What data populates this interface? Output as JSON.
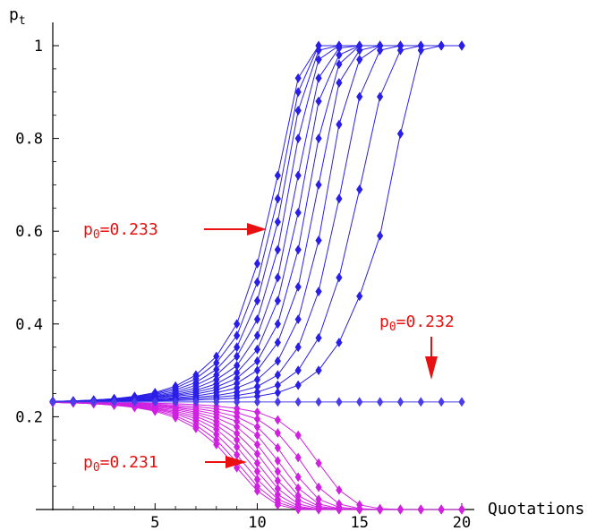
{
  "chart_data": {
    "type": "line",
    "title": "",
    "xlabel": "Quotations",
    "ylabel": "p",
    "ylabel_sub": "t",
    "xlim": [
      0,
      20
    ],
    "ylim": [
      0,
      1
    ],
    "x_ticks": [
      5,
      10,
      15,
      20
    ],
    "y_ticks": [
      "0.2",
      "0.4",
      "0.6",
      "0.8",
      "1"
    ],
    "grid": false,
    "x": [
      0,
      1,
      2,
      3,
      4,
      5,
      6,
      7,
      8,
      9,
      10,
      11,
      12,
      13,
      14,
      15,
      16,
      17,
      18,
      19,
      20
    ],
    "series_upper_color": "#2a1fe6",
    "series_lower_color": "#d020e0",
    "series_flat_color": "#4a3ce8",
    "annotation_color": "#e81010",
    "upper_series": [
      [
        0.233,
        0.234,
        0.236,
        0.239,
        0.244,
        0.252,
        0.266,
        0.29,
        0.33,
        0.4,
        0.53,
        0.72,
        0.93,
        1,
        1,
        1,
        1,
        1,
        1,
        1,
        1
      ],
      [
        0.233,
        0.234,
        0.236,
        0.239,
        0.243,
        0.25,
        0.262,
        0.282,
        0.316,
        0.375,
        0.49,
        0.67,
        0.9,
        1,
        1,
        1,
        1,
        1,
        1,
        1,
        1
      ],
      [
        0.233,
        0.234,
        0.235,
        0.238,
        0.242,
        0.248,
        0.258,
        0.274,
        0.302,
        0.35,
        0.45,
        0.62,
        0.86,
        0.99,
        1,
        1,
        1,
        1,
        1,
        1,
        1
      ],
      [
        0.233,
        0.234,
        0.235,
        0.237,
        0.241,
        0.246,
        0.254,
        0.268,
        0.29,
        0.33,
        0.41,
        0.56,
        0.8,
        0.97,
        1,
        1,
        1,
        1,
        1,
        1,
        1
      ],
      [
        0.233,
        0.233,
        0.235,
        0.237,
        0.24,
        0.244,
        0.251,
        0.262,
        0.28,
        0.31,
        0.375,
        0.5,
        0.72,
        0.93,
        0.995,
        1,
        1,
        1,
        1,
        1,
        1
      ],
      [
        0.233,
        0.233,
        0.234,
        0.236,
        0.239,
        0.243,
        0.248,
        0.257,
        0.271,
        0.295,
        0.345,
        0.45,
        0.64,
        0.88,
        0.98,
        1,
        1,
        1,
        1,
        1,
        1
      ],
      [
        0.233,
        0.233,
        0.234,
        0.236,
        0.238,
        0.241,
        0.246,
        0.253,
        0.264,
        0.283,
        0.32,
        0.4,
        0.56,
        0.8,
        0.96,
        1,
        1,
        1,
        1,
        1,
        1
      ],
      [
        0.233,
        0.233,
        0.234,
        0.235,
        0.237,
        0.24,
        0.244,
        0.249,
        0.258,
        0.272,
        0.3,
        0.36,
        0.48,
        0.7,
        0.92,
        0.99,
        1,
        1,
        1,
        1,
        1
      ],
      [
        0.233,
        0.233,
        0.234,
        0.235,
        0.236,
        0.238,
        0.241,
        0.245,
        0.252,
        0.262,
        0.28,
        0.32,
        0.41,
        0.58,
        0.83,
        0.97,
        1,
        1,
        1,
        1,
        1
      ],
      [
        0.233,
        0.233,
        0.233,
        0.234,
        0.235,
        0.237,
        0.239,
        0.242,
        0.246,
        0.253,
        0.265,
        0.29,
        0.35,
        0.47,
        0.67,
        0.89,
        0.99,
        1,
        1,
        1,
        1
      ],
      [
        0.233,
        0.233,
        0.233,
        0.234,
        0.234,
        0.235,
        0.237,
        0.239,
        0.242,
        0.246,
        0.253,
        0.268,
        0.3,
        0.37,
        0.5,
        0.69,
        0.89,
        0.99,
        1,
        1,
        1
      ],
      [
        0.233,
        0.233,
        0.233,
        0.233,
        0.234,
        0.234,
        0.235,
        0.236,
        0.238,
        0.24,
        0.244,
        0.252,
        0.268,
        0.3,
        0.36,
        0.46,
        0.59,
        0.81,
        0.99,
        1,
        1
      ]
    ],
    "flat_series": [
      0.232,
      0.232,
      0.232,
      0.232,
      0.232,
      0.232,
      0.232,
      0.232,
      0.232,
      0.232,
      0.232,
      0.232,
      0.232,
      0.232,
      0.232,
      0.232,
      0.232,
      0.232,
      0.232,
      0.232,
      0.232
    ],
    "lower_series": [
      [
        0.231,
        0.23,
        0.228,
        0.225,
        0.22,
        0.212,
        0.198,
        0.175,
        0.14,
        0.09,
        0.04,
        0.01,
        0,
        0,
        0,
        0,
        0,
        0,
        0,
        0,
        0
      ],
      [
        0.231,
        0.23,
        0.228,
        0.225,
        0.221,
        0.214,
        0.202,
        0.182,
        0.15,
        0.102,
        0.05,
        0.015,
        0.002,
        0,
        0,
        0,
        0,
        0,
        0,
        0,
        0
      ],
      [
        0.231,
        0.23,
        0.229,
        0.226,
        0.222,
        0.216,
        0.206,
        0.19,
        0.162,
        0.118,
        0.065,
        0.022,
        0.004,
        0,
        0,
        0,
        0,
        0,
        0,
        0,
        0
      ],
      [
        0.231,
        0.23,
        0.229,
        0.227,
        0.223,
        0.218,
        0.209,
        0.196,
        0.173,
        0.135,
        0.082,
        0.032,
        0.007,
        0,
        0,
        0,
        0,
        0,
        0,
        0,
        0
      ],
      [
        0.231,
        0.23,
        0.229,
        0.227,
        0.224,
        0.219,
        0.212,
        0.201,
        0.182,
        0.15,
        0.1,
        0.045,
        0.012,
        0.002,
        0,
        0,
        0,
        0,
        0,
        0,
        0
      ],
      [
        0.231,
        0.231,
        0.229,
        0.228,
        0.225,
        0.221,
        0.215,
        0.206,
        0.19,
        0.164,
        0.12,
        0.062,
        0.02,
        0.004,
        0,
        0,
        0,
        0,
        0,
        0,
        0
      ],
      [
        0.231,
        0.231,
        0.23,
        0.228,
        0.226,
        0.223,
        0.218,
        0.21,
        0.198,
        0.178,
        0.14,
        0.082,
        0.03,
        0.007,
        0.001,
        0,
        0,
        0,
        0,
        0,
        0
      ],
      [
        0.231,
        0.231,
        0.23,
        0.229,
        0.227,
        0.224,
        0.22,
        0.214,
        0.205,
        0.19,
        0.16,
        0.105,
        0.046,
        0.012,
        0.002,
        0,
        0,
        0,
        0,
        0,
        0
      ],
      [
        0.231,
        0.231,
        0.23,
        0.229,
        0.228,
        0.226,
        0.222,
        0.218,
        0.211,
        0.2,
        0.178,
        0.133,
        0.07,
        0.022,
        0.005,
        0.001,
        0,
        0,
        0,
        0,
        0
      ],
      [
        0.231,
        0.231,
        0.231,
        0.23,
        0.229,
        0.227,
        0.225,
        0.222,
        0.217,
        0.209,
        0.195,
        0.165,
        0.112,
        0.048,
        0.012,
        0.002,
        0,
        0,
        0,
        0,
        0
      ],
      [
        0.231,
        0.231,
        0.231,
        0.23,
        0.23,
        0.229,
        0.228,
        0.226,
        0.223,
        0.218,
        0.21,
        0.193,
        0.16,
        0.1,
        0.042,
        0.01,
        0.002,
        0,
        0,
        0,
        0
      ]
    ],
    "annotations": [
      {
        "label": "p",
        "sub": "0",
        "value": "=0.233",
        "target": "upper"
      },
      {
        "label": "p",
        "sub": "0",
        "value": "=0.232",
        "target": "flat"
      },
      {
        "label": "p",
        "sub": "0",
        "value": "=0.231",
        "target": "lower"
      }
    ]
  }
}
